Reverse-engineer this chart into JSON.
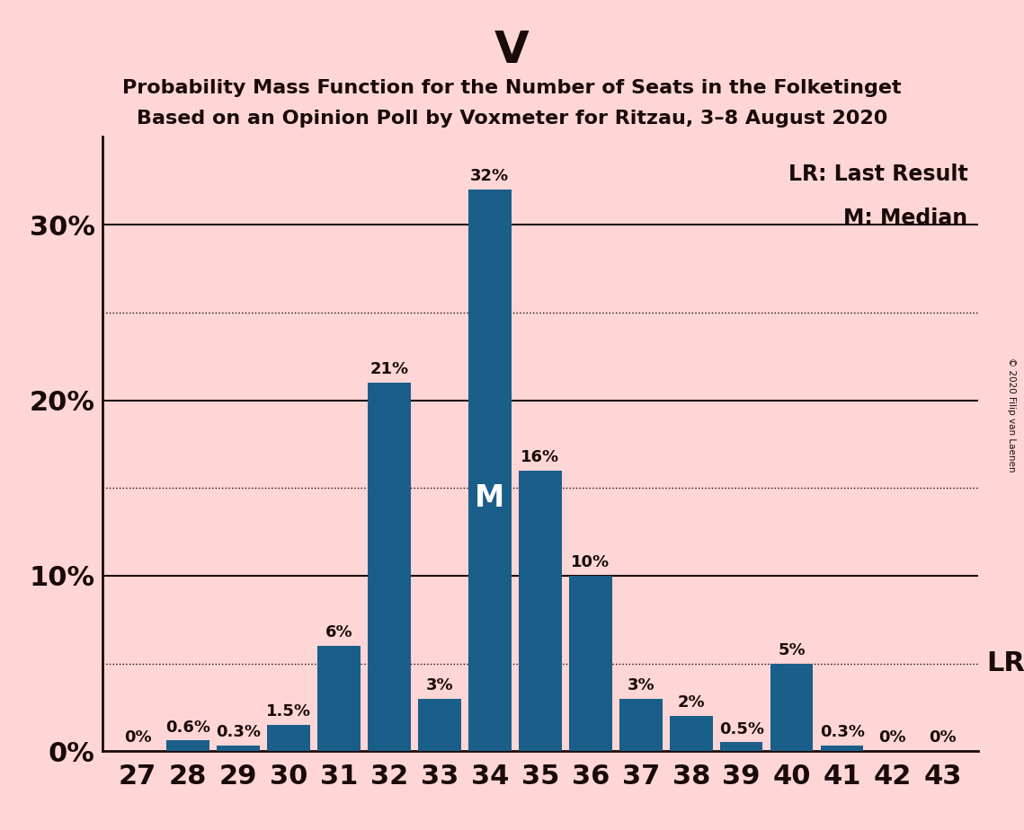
{
  "title": "V",
  "subtitle1": "Probability Mass Function for the Number of Seats in the Folketinget",
  "subtitle2": "Based on an Opinion Poll by Voxmeter for Ritzau, 3–8 August 2020",
  "copyright": "© 2020 Filip van Laenen",
  "seats": [
    27,
    28,
    29,
    30,
    31,
    32,
    33,
    34,
    35,
    36,
    37,
    38,
    39,
    40,
    41,
    42,
    43
  ],
  "probabilities": [
    0.0,
    0.6,
    0.3,
    1.5,
    6.0,
    21.0,
    3.0,
    32.0,
    16.0,
    10.0,
    3.0,
    2.0,
    0.5,
    5.0,
    0.3,
    0.0,
    0.0
  ],
  "labels": [
    "0%",
    "0.6%",
    "0.3%",
    "1.5%",
    "6%",
    "21%",
    "3%",
    "32%",
    "16%",
    "10%",
    "3%",
    "2%",
    "0.5%",
    "5%",
    "0.3%",
    "0%",
    "0%"
  ],
  "bar_color": "#1A5E8A",
  "background_color": "#FFD6D6",
  "median_seat": 34,
  "lr_seat": 39,
  "ylim": [
    0,
    35
  ],
  "ytick_vals": [
    0,
    10,
    20,
    30
  ],
  "ytick_labels": [
    "0%",
    "10%",
    "20%",
    "30%"
  ],
  "solid_lines": [
    10,
    20,
    30
  ],
  "dotted_lines": [
    5,
    15,
    25
  ],
  "title_fontsize": 36,
  "subtitle_fontsize": 16,
  "axis_fontsize": 22,
  "bar_label_fontsize": 13,
  "legend_fontsize": 17,
  "lr_label_fontsize": 22,
  "text_color": "#1a0a0a"
}
